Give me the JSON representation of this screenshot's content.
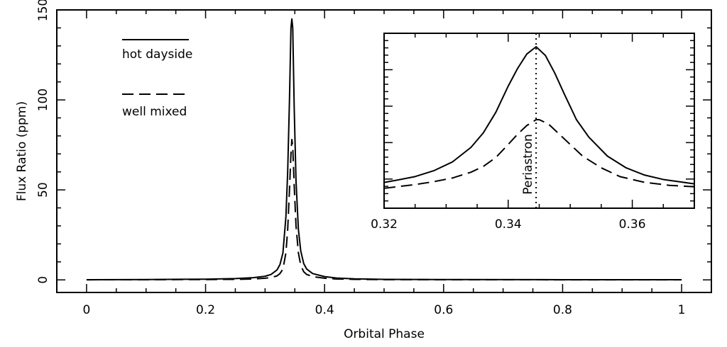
{
  "chart_data": [
    {
      "type": "line",
      "panel": "main",
      "xlabel": "Orbital Phase",
      "ylabel": "Flux Ratio (ppm)",
      "xlim": [
        -0.05,
        1.05
      ],
      "ylim": [
        -7,
        150
      ],
      "xticks": [
        0,
        0.2,
        0.4,
        0.6,
        0.8,
        1
      ],
      "xtick_labels": [
        "0",
        "0.2",
        "0.4",
        "0.6",
        "0.8",
        "1"
      ],
      "yticks": [
        0,
        50,
        100,
        150
      ],
      "ytick_labels": [
        "0",
        "50",
        "100",
        "150"
      ],
      "legend_placement": "top-left",
      "series": [
        {
          "name": "hot dayside",
          "style": "solid",
          "x": [
            0,
            0.1,
            0.2,
            0.25,
            0.28,
            0.3,
            0.31,
            0.32,
            0.325,
            0.33,
            0.335,
            0.338,
            0.341,
            0.3435,
            0.345,
            0.3465,
            0.349,
            0.352,
            0.356,
            0.36,
            0.365,
            0.37,
            0.38,
            0.4,
            0.42,
            0.45,
            0.5,
            0.6,
            0.8,
            1.0
          ],
          "y": [
            0.1,
            0.2,
            0.4,
            0.7,
            1.2,
            2.0,
            3.0,
            5.5,
            8.5,
            15,
            35,
            60,
            100,
            140,
            145,
            140,
            95,
            55,
            28,
            16,
            9,
            6,
            3.5,
            1.8,
            1.0,
            0.6,
            0.3,
            0.2,
            0.1,
            0.1
          ]
        },
        {
          "name": "well mixed",
          "style": "dashed",
          "x": [
            0,
            0.1,
            0.2,
            0.25,
            0.28,
            0.3,
            0.31,
            0.32,
            0.325,
            0.33,
            0.335,
            0.338,
            0.341,
            0.3435,
            0.345,
            0.3465,
            0.349,
            0.352,
            0.356,
            0.36,
            0.365,
            0.37,
            0.38,
            0.4,
            0.42,
            0.45,
            0.5,
            0.6,
            0.8,
            1.0
          ],
          "y": [
            0.05,
            0.1,
            0.2,
            0.3,
            0.5,
            0.9,
            1.3,
            2.2,
            3.5,
            6,
            15,
            28,
            50,
            70,
            78,
            74,
            52,
            30,
            15,
            8,
            4.5,
            3,
            1.8,
            0.9,
            0.5,
            0.3,
            0.15,
            0.1,
            0.05,
            0.05
          ]
        }
      ]
    },
    {
      "type": "line",
      "panel": "inset",
      "xlim": [
        0.32,
        0.37
      ],
      "ylim": [
        0,
        1
      ],
      "xticks": [
        0.32,
        0.34,
        0.36
      ],
      "xtick_labels": [
        "0.32",
        "0.34",
        "0.36"
      ],
      "minor_xticks": [
        0.325,
        0.33,
        0.335,
        0.345,
        0.35,
        0.355,
        0.365
      ],
      "annotation": {
        "text": "Periastron",
        "x": 0.3445
      },
      "series": [
        {
          "name": "hot dayside",
          "style": "solid",
          "x": [
            0.32,
            0.322,
            0.325,
            0.328,
            0.331,
            0.334,
            0.336,
            0.338,
            0.34,
            0.3415,
            0.343,
            0.3445,
            0.346,
            0.3475,
            0.349,
            0.351,
            0.353,
            0.356,
            0.359,
            0.362,
            0.365,
            0.37
          ],
          "y": [
            0.07,
            0.085,
            0.11,
            0.15,
            0.21,
            0.31,
            0.41,
            0.55,
            0.73,
            0.85,
            0.95,
            1.0,
            0.94,
            0.82,
            0.68,
            0.5,
            0.38,
            0.25,
            0.17,
            0.12,
            0.09,
            0.06
          ]
        },
        {
          "name": "well mixed",
          "style": "dashed",
          "x": [
            0.32,
            0.322,
            0.325,
            0.328,
            0.331,
            0.334,
            0.336,
            0.338,
            0.34,
            0.3415,
            0.343,
            0.3445,
            0.345,
            0.3465,
            0.348,
            0.35,
            0.352,
            0.355,
            0.358,
            0.362,
            0.366,
            0.37
          ],
          "y": [
            0.03,
            0.04,
            0.055,
            0.075,
            0.1,
            0.14,
            0.18,
            0.24,
            0.33,
            0.4,
            0.46,
            0.5,
            0.5,
            0.47,
            0.41,
            0.33,
            0.25,
            0.17,
            0.11,
            0.07,
            0.05,
            0.04
          ]
        }
      ]
    }
  ]
}
